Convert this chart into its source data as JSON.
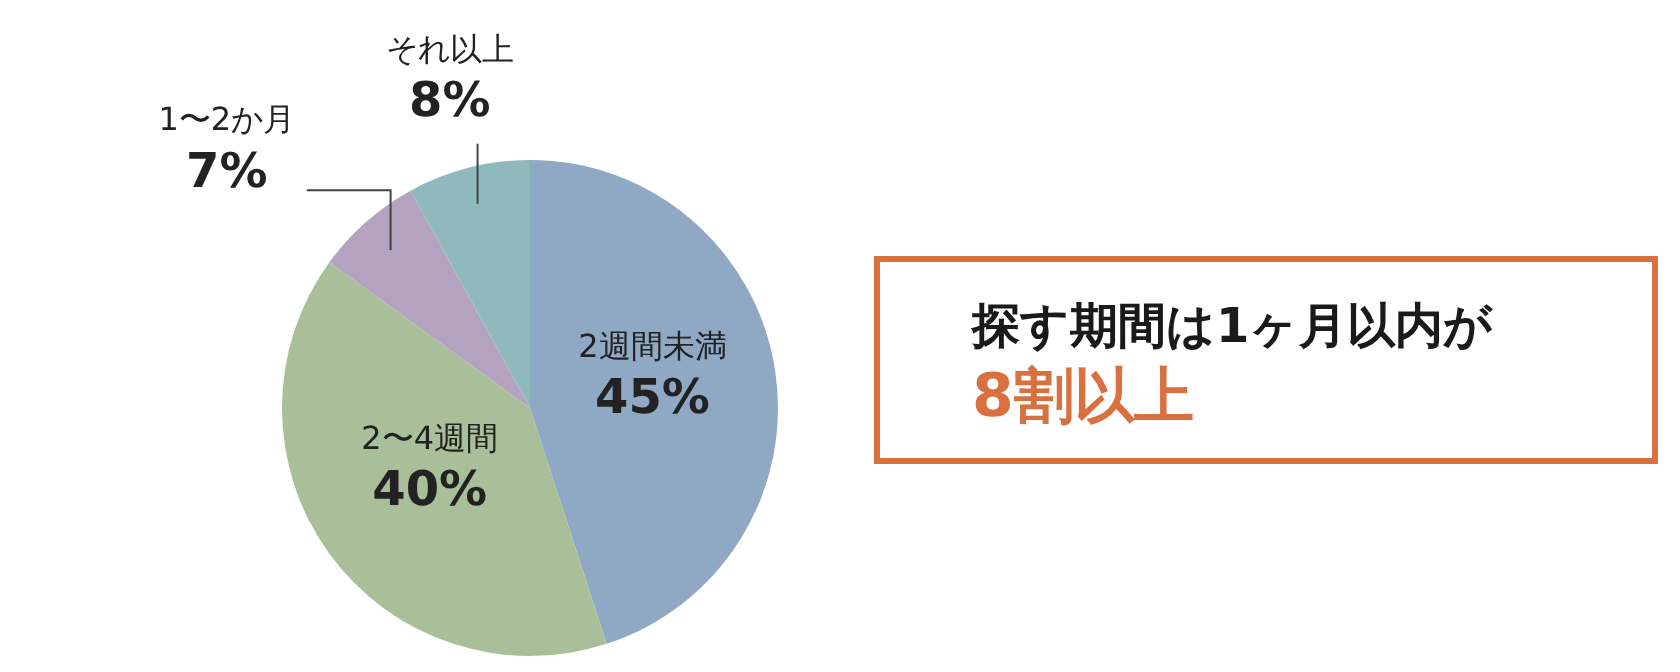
{
  "chart_data": {
    "type": "pie",
    "categories": [
      "2週間未満",
      "2〜4週間",
      "1〜2か月",
      "それ以上"
    ],
    "values": [
      45,
      40,
      7,
      8
    ],
    "colors": [
      "#8fa8c4",
      "#a9bf9a",
      "#b3a3c0",
      "#8fb9bd"
    ],
    "value_labels": [
      "45%",
      "40%",
      "7%",
      "8%"
    ],
    "legend": false,
    "annotations": [
      "探す期間は1ヶ月以内が",
      "8割以上"
    ]
  }
}
